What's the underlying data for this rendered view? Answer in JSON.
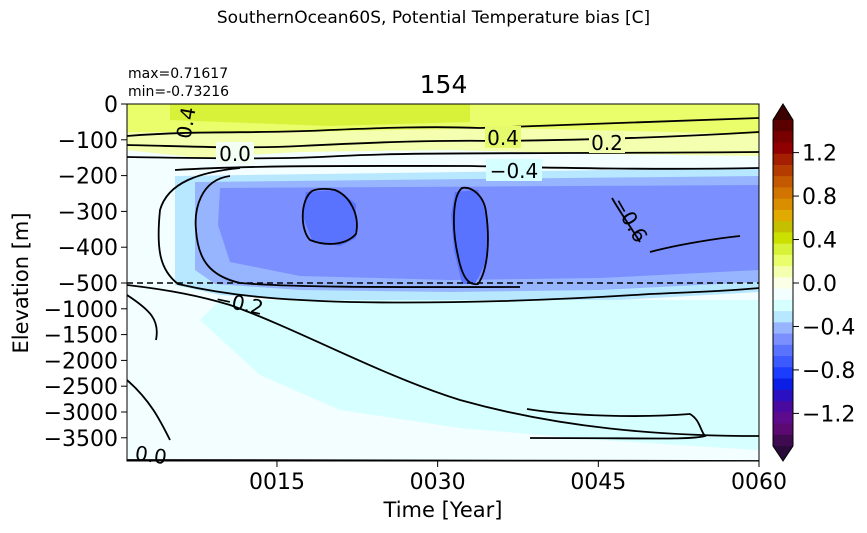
{
  "figure": {
    "suptitle": "SouthernOcean60S, Potential Temperature bias [C]",
    "panel_title": "154",
    "max_label": "max=0.71617",
    "min_label": "min=-0.73216"
  },
  "chart_data": {
    "type": "heatmap",
    "title": "154",
    "xlabel": "Time [Year]",
    "ylabel": "Elevation [m]",
    "x_ticks": [
      "0015",
      "0030",
      "0045",
      "0060"
    ],
    "xlim": [
      1,
      60
    ],
    "y_ticks_upper": [
      "0",
      "−100",
      "−200",
      "−300",
      "−400",
      "−500"
    ],
    "y_ticks_lower": [
      "−1000",
      "−1500",
      "−2000",
      "−2500",
      "−3000",
      "−3500"
    ],
    "y_break_depth": -500,
    "colorbar": {
      "ticks": [
        "1.2",
        "0.8",
        "0.4",
        "0.0",
        "−0.4",
        "−0.8",
        "−1.2"
      ],
      "range": [
        -1.5,
        1.5
      ],
      "extend": "both"
    },
    "contour_labels": [
      "0.4",
      "0.2",
      "0.0",
      "−0.4",
      "−0.6",
      "−0.2",
      "0.4",
      "0.0"
    ],
    "max": 0.71617,
    "min": -0.73216,
    "colors": {
      "pos_high": "#d8f23a",
      "pos_mid": "#eafd6a",
      "pos_low": "#f4ffb0",
      "near_zero": "#f2feff",
      "neg_01": "#d6ffff",
      "neg_02": "#b7e8ff",
      "neg_04": "#97b5ff",
      "neg_05": "#7b8fff",
      "neg_06": "#5a73ff"
    }
  }
}
